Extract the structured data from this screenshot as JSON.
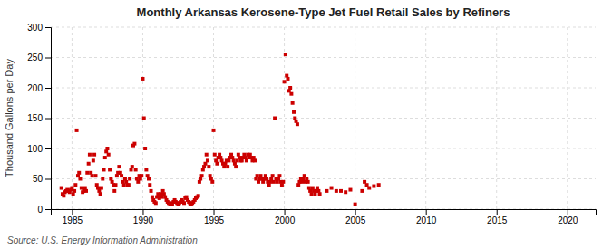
{
  "chart_data": {
    "type": "scatter",
    "title": "Monthly Arkansas Kerosene-Type Jet Fuel Retail Sales by Refiners",
    "ylabel": "Thousand Gallons per Day",
    "annotations": [
      "Source: U.S. Energy Information Administration"
    ],
    "color": "#CC0000",
    "marker": "square",
    "grid": true,
    "xlim": [
      1983.5,
      2022
    ],
    "ylim": [
      0,
      300
    ],
    "xticks": [
      1985,
      1990,
      1995,
      2000,
      2005,
      2010,
      2015,
      2020
    ],
    "yticks": [
      0,
      50,
      100,
      150,
      200,
      250,
      300
    ],
    "x": [
      1984.25,
      1984.33,
      1984.42,
      1984.5,
      1984.58,
      1984.67,
      1984.75,
      1984.83,
      1984.92,
      1985.0,
      1985.08,
      1985.17,
      1985.25,
      1985.33,
      1985.42,
      1985.5,
      1985.58,
      1985.67,
      1985.75,
      1985.83,
      1985.92,
      1986.0,
      1986.08,
      1986.17,
      1986.25,
      1986.33,
      1986.42,
      1986.5,
      1986.58,
      1986.67,
      1986.75,
      1986.83,
      1986.92,
      1987.0,
      1987.08,
      1987.17,
      1987.25,
      1987.33,
      1987.42,
      1987.5,
      1987.58,
      1987.67,
      1987.75,
      1987.83,
      1987.92,
      1988.0,
      1988.08,
      1988.17,
      1988.25,
      1988.33,
      1988.42,
      1988.5,
      1988.58,
      1988.67,
      1988.75,
      1988.83,
      1988.92,
      1989.0,
      1989.08,
      1989.17,
      1989.25,
      1989.33,
      1989.42,
      1989.5,
      1989.58,
      1989.67,
      1989.75,
      1989.83,
      1989.92,
      1990.0,
      1990.08,
      1990.17,
      1990.25,
      1990.33,
      1990.42,
      1990.5,
      1990.58,
      1990.67,
      1990.75,
      1990.83,
      1990.92,
      1991.0,
      1991.08,
      1991.17,
      1991.25,
      1991.33,
      1991.42,
      1991.5,
      1991.58,
      1991.67,
      1991.75,
      1991.83,
      1991.92,
      1992.0,
      1992.08,
      1992.17,
      1992.25,
      1992.33,
      1992.42,
      1992.5,
      1992.58,
      1992.67,
      1992.75,
      1992.83,
      1992.92,
      1993.0,
      1993.08,
      1993.17,
      1993.25,
      1993.33,
      1993.42,
      1993.5,
      1993.58,
      1993.67,
      1993.75,
      1993.83,
      1993.92,
      1994.0,
      1994.08,
      1994.17,
      1994.25,
      1994.33,
      1994.42,
      1994.5,
      1994.58,
      1994.67,
      1994.75,
      1994.83,
      1994.92,
      1995.0,
      1995.08,
      1995.17,
      1995.25,
      1995.33,
      1995.42,
      1995.5,
      1995.58,
      1995.67,
      1995.75,
      1995.83,
      1995.92,
      1996.0,
      1996.08,
      1996.17,
      1996.25,
      1996.33,
      1996.42,
      1996.5,
      1996.58,
      1996.67,
      1996.75,
      1996.83,
      1996.92,
      1997.0,
      1997.08,
      1997.17,
      1997.25,
      1997.33,
      1997.42,
      1997.5,
      1997.58,
      1997.67,
      1997.75,
      1997.83,
      1997.92,
      1998.0,
      1998.08,
      1998.17,
      1998.25,
      1998.33,
      1998.42,
      1998.5,
      1998.58,
      1998.67,
      1998.75,
      1998.83,
      1998.92,
      1999.0,
      1999.08,
      1999.17,
      1999.25,
      1999.33,
      1999.42,
      1999.5,
      1999.58,
      1999.67,
      1999.75,
      1999.83,
      1999.92,
      2000.0,
      2000.08,
      2000.17,
      2000.25,
      2000.33,
      2000.42,
      2000.5,
      2000.58,
      2000.67,
      2000.75,
      2000.83,
      2000.92,
      2001.0,
      2001.08,
      2001.17,
      2001.25,
      2001.33,
      2001.42,
      2001.5,
      2001.58,
      2001.67,
      2001.75,
      2001.83,
      2001.92,
      2002.0,
      2002.08,
      2002.17,
      2002.25,
      2002.33,
      2002.42,
      2002.5,
      2003.0,
      2003.33,
      2003.67,
      2004.0,
      2004.33,
      2004.67,
      2005.0,
      2005.5,
      2005.67,
      2005.83,
      2006.0,
      2006.33,
      2006.67
    ],
    "values": [
      35,
      25,
      22,
      28,
      30,
      32,
      30,
      28,
      32,
      35,
      25,
      30,
      40,
      130,
      55,
      60,
      50,
      35,
      28,
      30,
      35,
      30,
      60,
      75,
      90,
      60,
      55,
      80,
      90,
      55,
      40,
      35,
      30,
      25,
      35,
      50,
      65,
      85,
      95,
      100,
      90,
      65,
      50,
      45,
      40,
      30,
      40,
      55,
      60,
      70,
      60,
      55,
      45,
      40,
      50,
      45,
      40,
      40,
      50,
      65,
      70,
      105,
      108,
      65,
      50,
      45,
      55,
      50,
      55,
      215,
      150,
      100,
      65,
      55,
      50,
      40,
      30,
      20,
      15,
      12,
      10,
      20,
      25,
      18,
      25,
      20,
      30,
      25,
      20,
      15,
      12,
      10,
      8,
      10,
      8,
      12,
      15,
      12,
      10,
      8,
      10,
      12,
      15,
      12,
      10,
      18,
      20,
      15,
      12,
      10,
      8,
      10,
      12,
      15,
      18,
      20,
      22,
      45,
      50,
      55,
      65,
      70,
      75,
      90,
      80,
      70,
      55,
      50,
      45,
      130,
      90,
      80,
      75,
      85,
      90,
      85,
      80,
      75,
      70,
      75,
      80,
      70,
      80,
      85,
      90,
      85,
      80,
      75,
      70,
      80,
      90,
      85,
      80,
      80,
      85,
      90,
      85,
      80,
      90,
      85,
      90,
      85,
      80,
      85,
      80,
      50,
      55,
      45,
      50,
      55,
      50,
      45,
      50,
      55,
      50,
      45,
      40,
      45,
      50,
      55,
      45,
      150,
      50,
      45,
      50,
      55,
      45,
      40,
      45,
      210,
      255,
      220,
      215,
      195,
      200,
      190,
      175,
      160,
      150,
      145,
      140,
      40,
      45,
      50,
      45,
      50,
      55,
      45,
      50,
      45,
      35,
      30,
      25,
      35,
      30,
      25,
      30,
      35,
      30,
      25,
      30,
      35,
      30,
      30,
      28,
      32,
      8,
      30,
      45,
      40,
      35,
      38,
      40
    ]
  }
}
